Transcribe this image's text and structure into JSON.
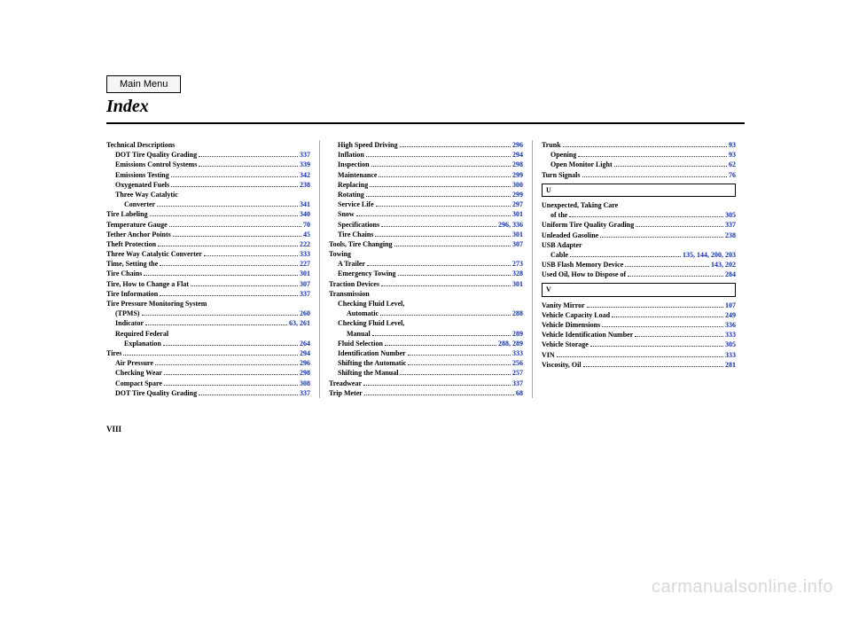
{
  "header": {
    "main_menu": "Main Menu",
    "title": "Index",
    "page_roman": "VIII"
  },
  "watermark": "carmanualsonline.info",
  "columns": [
    [
      {
        "label": "Technical Descriptions",
        "pages": null,
        "indent": 0
      },
      {
        "label": "DOT Tire Quality Grading",
        "pages": [
          "337"
        ],
        "indent": 1
      },
      {
        "label": "Emissions Control Systems",
        "pages": [
          "339"
        ],
        "indent": 1
      },
      {
        "label": "Emissions Testing",
        "pages": [
          "342"
        ],
        "indent": 1
      },
      {
        "label": "Oxygenated Fuels",
        "pages": [
          "238"
        ],
        "indent": 1
      },
      {
        "label": "Three Way Catalytic",
        "pages": null,
        "indent": 1
      },
      {
        "label": "Converter",
        "pages": [
          "341"
        ],
        "indent": 2
      },
      {
        "label": "Tire Labeling",
        "pages": [
          "340"
        ],
        "indent": 0
      },
      {
        "label": "Temperature Gauge",
        "pages": [
          "70"
        ],
        "indent": 0
      },
      {
        "label": "Tether Anchor Points",
        "pages": [
          "45"
        ],
        "indent": 0
      },
      {
        "label": "Theft Protection",
        "pages": [
          "222"
        ],
        "indent": 0
      },
      {
        "label": "Three Way Catalytic Converter",
        "pages": [
          "333"
        ],
        "indent": 0
      },
      {
        "label": "Time, Setting the",
        "pages": [
          "227"
        ],
        "indent": 0
      },
      {
        "label": "Tire Chains",
        "pages": [
          "301"
        ],
        "indent": 0
      },
      {
        "label": "Tire, How to Change a Flat",
        "pages": [
          "307"
        ],
        "indent": 0
      },
      {
        "label": "Tire Information",
        "pages": [
          "337"
        ],
        "indent": 0
      },
      {
        "label": "Tire Pressure Monitoring System",
        "pages": null,
        "indent": 0
      },
      {
        "label": "(TPMS)",
        "pages": [
          "260"
        ],
        "indent": 1
      },
      {
        "label": "Indicator",
        "pages": [
          "63",
          "261"
        ],
        "indent": 1
      },
      {
        "label": "Required Federal",
        "pages": null,
        "indent": 1
      },
      {
        "label": "Explanation",
        "pages": [
          "264"
        ],
        "indent": 2
      },
      {
        "label": "Tires",
        "pages": [
          "294"
        ],
        "indent": 0
      },
      {
        "label": "Air Pressure",
        "pages": [
          "296"
        ],
        "indent": 1
      },
      {
        "label": "Checking Wear",
        "pages": [
          "298"
        ],
        "indent": 1
      },
      {
        "label": "Compact Spare",
        "pages": [
          "308"
        ],
        "indent": 1
      },
      {
        "label": "DOT Tire Quality Grading",
        "pages": [
          "337"
        ],
        "indent": 1
      }
    ],
    [
      {
        "label": "High Speed Driving",
        "pages": [
          "296"
        ],
        "indent": 1
      },
      {
        "label": "Inflation",
        "pages": [
          "294"
        ],
        "indent": 1
      },
      {
        "label": "Inspection",
        "pages": [
          "298"
        ],
        "indent": 1
      },
      {
        "label": "Maintenance",
        "pages": [
          "299"
        ],
        "indent": 1
      },
      {
        "label": "Replacing",
        "pages": [
          "300"
        ],
        "indent": 1
      },
      {
        "label": "Rotating",
        "pages": [
          "299"
        ],
        "indent": 1
      },
      {
        "label": "Service Life",
        "pages": [
          "297"
        ],
        "indent": 1
      },
      {
        "label": "Snow",
        "pages": [
          "301"
        ],
        "indent": 1
      },
      {
        "label": "Specifications",
        "pages": [
          "296",
          "336"
        ],
        "indent": 1
      },
      {
        "label": "Tire Chains",
        "pages": [
          "301"
        ],
        "indent": 1
      },
      {
        "label": "Tools, Tire Changing",
        "pages": [
          "307"
        ],
        "indent": 0
      },
      {
        "label": "Towing",
        "pages": null,
        "indent": 0
      },
      {
        "label": "A Trailer",
        "pages": [
          "273"
        ],
        "indent": 1
      },
      {
        "label": "Emergency Towing",
        "pages": [
          "328"
        ],
        "indent": 1
      },
      {
        "label": "Traction Devices",
        "pages": [
          "301"
        ],
        "indent": 0
      },
      {
        "label": "Transmission",
        "pages": null,
        "indent": 0
      },
      {
        "label": "Checking Fluid Level,",
        "pages": null,
        "indent": 1
      },
      {
        "label": "Automatic",
        "pages": [
          "288"
        ],
        "indent": 2
      },
      {
        "label": "Checking Fluid Level,",
        "pages": null,
        "indent": 1
      },
      {
        "label": "Manual",
        "pages": [
          "289"
        ],
        "indent": 2
      },
      {
        "label": "Fluid Selection",
        "pages": [
          "288",
          "289"
        ],
        "indent": 1
      },
      {
        "label": "Identification Number",
        "pages": [
          "333"
        ],
        "indent": 1
      },
      {
        "label": "Shifting the Automatic",
        "pages": [
          "256"
        ],
        "indent": 1
      },
      {
        "label": "Shifting the Manual",
        "pages": [
          "257"
        ],
        "indent": 1
      },
      {
        "label": "Treadwear",
        "pages": [
          "337"
        ],
        "indent": 0
      },
      {
        "label": "Trip Meter",
        "pages": [
          "68"
        ],
        "indent": 0
      }
    ],
    [
      {
        "label": "Trunk",
        "pages": [
          "93"
        ],
        "indent": 0
      },
      {
        "label": "Opening",
        "pages": [
          "93"
        ],
        "indent": 1
      },
      {
        "label": "Open Monitor Light",
        "pages": [
          "62"
        ],
        "indent": 1
      },
      {
        "label": "Turn Signals",
        "pages": [
          "76"
        ],
        "indent": 0
      },
      {
        "section": "U"
      },
      {
        "label": "Unexpected, Taking Care",
        "pages": null,
        "indent": 0
      },
      {
        "label": "of the",
        "pages": [
          "305"
        ],
        "indent": 1
      },
      {
        "label": "Uniform Tire Quality Grading",
        "pages": [
          "337"
        ],
        "indent": 0
      },
      {
        "label": "Unleaded Gasoline",
        "pages": [
          "238"
        ],
        "indent": 0
      },
      {
        "label": "USB Adapter",
        "pages": null,
        "indent": 0
      },
      {
        "label": "Cable",
        "pages": [
          "135",
          "144",
          "200",
          "203"
        ],
        "indent": 1
      },
      {
        "label": "USB Flash Memory Device",
        "pages": [
          "143",
          "202"
        ],
        "indent": 0
      },
      {
        "label": "Used Oil, How to Dispose of",
        "pages": [
          "284"
        ],
        "indent": 0
      },
      {
        "section": "V"
      },
      {
        "label": "Vanity Mirror",
        "pages": [
          "107"
        ],
        "indent": 0
      },
      {
        "label": "Vehicle Capacity Load",
        "pages": [
          "249"
        ],
        "indent": 0
      },
      {
        "label": "Vehicle Dimensions",
        "pages": [
          "336"
        ],
        "indent": 0
      },
      {
        "label": "Vehicle Identification Number",
        "pages": [
          "333"
        ],
        "indent": 0
      },
      {
        "label": "Vehicle Storage",
        "pages": [
          "305"
        ],
        "indent": 0
      },
      {
        "label": "VIN",
        "pages": [
          "333"
        ],
        "indent": 0
      },
      {
        "label": "Viscosity, Oil",
        "pages": [
          "281"
        ],
        "indent": 0
      }
    ]
  ]
}
